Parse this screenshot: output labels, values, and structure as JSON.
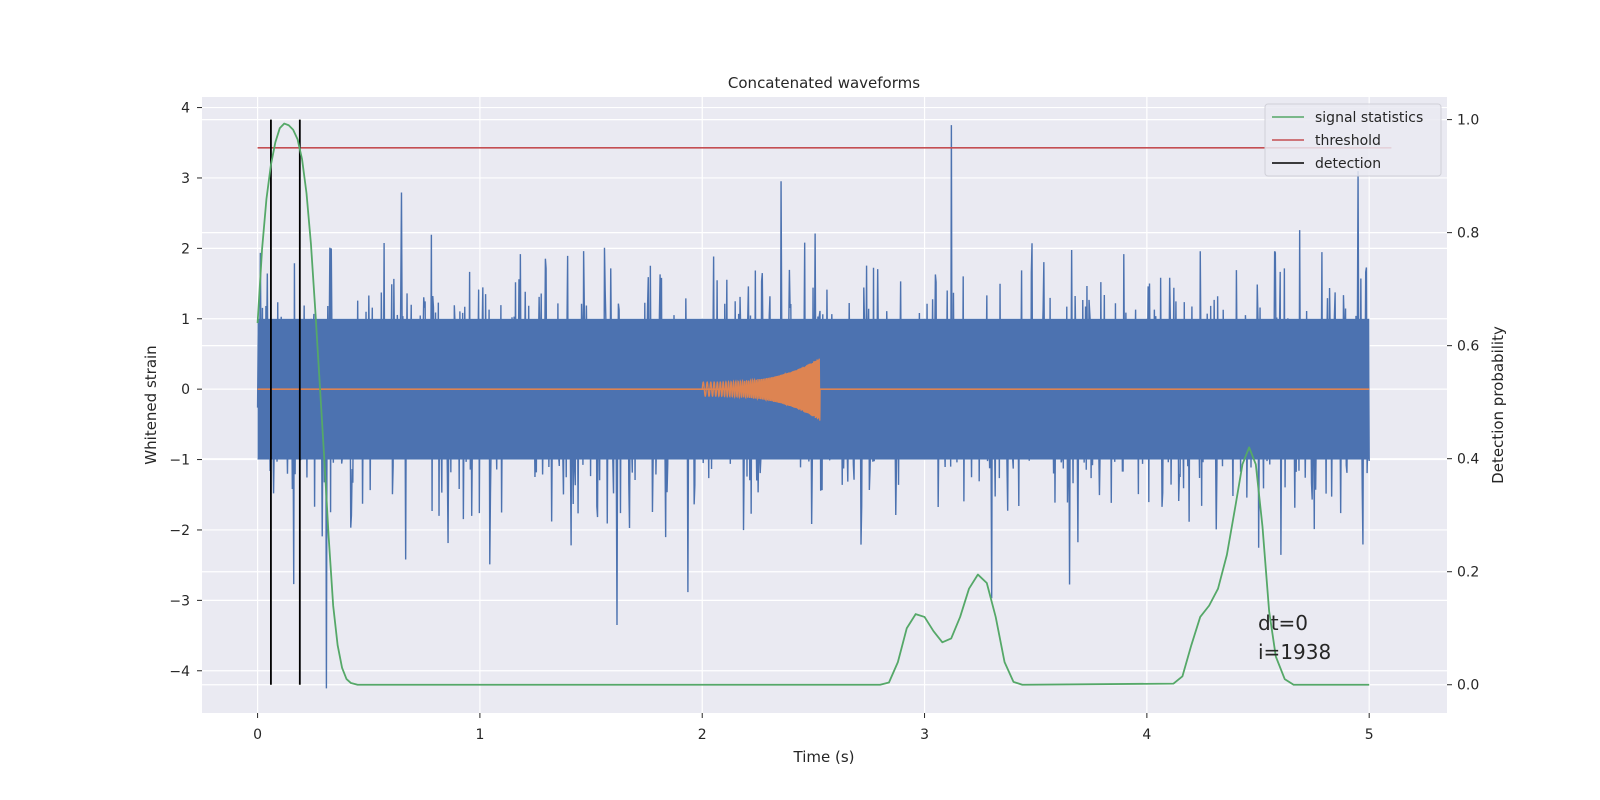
{
  "chart_data": {
    "type": "line",
    "title": "Concatenated waveforms",
    "xlabel": "Time (s)",
    "ylabel": "Whitened strain",
    "y2label": "Detection probability",
    "xlim": [
      -0.25,
      5.35
    ],
    "ylim": [
      -4.6,
      4.15
    ],
    "y2lim": [
      -0.05,
      1.04
    ],
    "xticks": [
      0,
      1,
      2,
      3,
      4,
      5
    ],
    "yticks": [
      -4,
      -3,
      -2,
      -1,
      0,
      1,
      2,
      3,
      4
    ],
    "y2ticks": [
      0.0,
      0.2,
      0.4,
      0.6,
      0.8,
      1.0
    ],
    "xtick_labels": [
      "0",
      "1",
      "2",
      "3",
      "4",
      "5"
    ],
    "ytick_labels": [
      "−4",
      "−3",
      "−2",
      "−1",
      "0",
      "1",
      "2",
      "3",
      "4"
    ],
    "y2tick_labels": [
      "0.0",
      "0.2",
      "0.4",
      "0.6",
      "0.8",
      "1.0"
    ],
    "grid": true,
    "legend_position": "top-right",
    "legend": [
      "signal statistics",
      "threshold",
      "detection"
    ],
    "colors": {
      "strain": "#4c72b0",
      "template": "#dd8452",
      "signal_statistics": "#55a868",
      "threshold": "#c44e52",
      "detection": "#000000",
      "plot_bg": "#eaeaf2",
      "grid": "#ffffff"
    },
    "strain_noise": {
      "x_start": 0.0,
      "x_end": 5.0,
      "core_amplitude": 1.0,
      "peak_max": 3.75,
      "peak_max_x": 3.12,
      "peak_min": -4.25,
      "peak_min_x": 0.31
    },
    "template_chirp": {
      "x_start": 2.0,
      "x_end": 2.53,
      "amplitude_start": 0.1,
      "amplitude_end": 0.45,
      "baseline_y": 0.0
    },
    "threshold_probability": 0.95,
    "detections_x": [
      0.06,
      0.19
    ],
    "signal_statistics": [
      [
        0.0,
        0.64
      ],
      [
        0.02,
        0.77
      ],
      [
        0.04,
        0.86
      ],
      [
        0.06,
        0.92
      ],
      [
        0.08,
        0.96
      ],
      [
        0.1,
        0.985
      ],
      [
        0.12,
        0.993
      ],
      [
        0.14,
        0.99
      ],
      [
        0.16,
        0.982
      ],
      [
        0.18,
        0.965
      ],
      [
        0.2,
        0.93
      ],
      [
        0.22,
        0.87
      ],
      [
        0.24,
        0.78
      ],
      [
        0.26,
        0.66
      ],
      [
        0.28,
        0.53
      ],
      [
        0.3,
        0.4
      ],
      [
        0.32,
        0.26
      ],
      [
        0.34,
        0.14
      ],
      [
        0.36,
        0.07
      ],
      [
        0.38,
        0.03
      ],
      [
        0.4,
        0.01
      ],
      [
        0.42,
        0.003
      ],
      [
        0.45,
        0.0
      ],
      [
        2.8,
        0.0
      ],
      [
        2.84,
        0.004
      ],
      [
        2.88,
        0.04
      ],
      [
        2.92,
        0.1
      ],
      [
        2.96,
        0.125
      ],
      [
        3.0,
        0.12
      ],
      [
        3.04,
        0.095
      ],
      [
        3.08,
        0.075
      ],
      [
        3.12,
        0.082
      ],
      [
        3.16,
        0.12
      ],
      [
        3.2,
        0.17
      ],
      [
        3.24,
        0.195
      ],
      [
        3.28,
        0.18
      ],
      [
        3.32,
        0.12
      ],
      [
        3.36,
        0.04
      ],
      [
        3.4,
        0.005
      ],
      [
        3.44,
        0.0
      ],
      [
        4.12,
        0.002
      ],
      [
        4.16,
        0.015
      ],
      [
        4.2,
        0.07
      ],
      [
        4.24,
        0.12
      ],
      [
        4.28,
        0.14
      ],
      [
        4.32,
        0.17
      ],
      [
        4.36,
        0.23
      ],
      [
        4.4,
        0.32
      ],
      [
        4.43,
        0.39
      ],
      [
        4.46,
        0.42
      ],
      [
        4.49,
        0.39
      ],
      [
        4.52,
        0.28
      ],
      [
        4.55,
        0.13
      ],
      [
        4.58,
        0.05
      ],
      [
        4.62,
        0.01
      ],
      [
        4.66,
        0.0
      ],
      [
        5.0,
        0.0
      ]
    ],
    "annotations": [
      "dt=0",
      "i=1938"
    ]
  }
}
